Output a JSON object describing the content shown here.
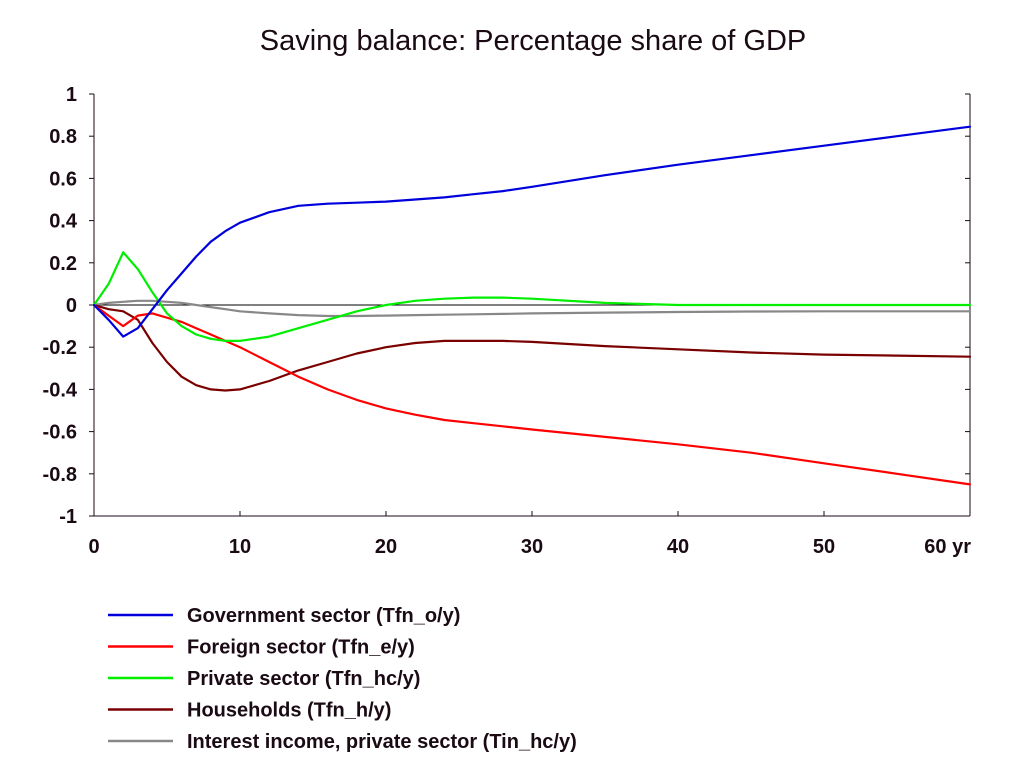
{
  "chart_data": {
    "type": "line",
    "title": "Saving balance: Percentage share of GDP",
    "xlabel": "",
    "ylabel": "",
    "x_unit_label": "yr",
    "xlim": [
      0,
      60
    ],
    "ylim": [
      -1,
      1
    ],
    "x_ticks": [
      0,
      10,
      20,
      30,
      40,
      50,
      60
    ],
    "x_tick_labels": [
      "0",
      "10",
      "20",
      "30",
      "40",
      "50",
      "60 yr"
    ],
    "y_ticks": [
      1,
      0.8,
      0.6,
      0.4,
      0.2,
      0,
      -0.2,
      -0.4,
      -0.6,
      -0.8,
      -1
    ],
    "y_tick_labels": [
      "1",
      "0.8",
      "0.6",
      "0.4",
      "0.2",
      "0",
      "-0.2",
      "-0.4",
      "-0.6",
      "-0.8",
      "-1"
    ],
    "zero_line": true,
    "grid": false,
    "legend_position": "bottom",
    "series": [
      {
        "name": "Government sector (Tfn_o/y)",
        "color": "#0000dd",
        "x": [
          0,
          1,
          2,
          3,
          4,
          5,
          6,
          7,
          8,
          9,
          10,
          12,
          14,
          16,
          18,
          20,
          22,
          24,
          26,
          28,
          30,
          35,
          40,
          45,
          50,
          55,
          60
        ],
        "values": [
          0,
          -0.07,
          -0.15,
          -0.11,
          -0.02,
          0.07,
          0.15,
          0.23,
          0.3,
          0.35,
          0.39,
          0.44,
          0.47,
          0.48,
          0.485,
          0.49,
          0.5,
          0.51,
          0.525,
          0.54,
          0.56,
          0.615,
          0.665,
          0.71,
          0.755,
          0.8,
          0.845
        ]
      },
      {
        "name": "Foreign sector (Tfn_e/y)",
        "color": "#ff0000",
        "x": [
          0,
          1,
          2,
          3,
          4,
          5,
          6,
          7,
          8,
          9,
          10,
          12,
          14,
          16,
          18,
          20,
          22,
          24,
          26,
          28,
          30,
          35,
          40,
          45,
          50,
          55,
          60
        ],
        "values": [
          0,
          -0.05,
          -0.1,
          -0.05,
          -0.04,
          -0.06,
          -0.08,
          -0.11,
          -0.14,
          -0.17,
          -0.2,
          -0.27,
          -0.34,
          -0.4,
          -0.45,
          -0.49,
          -0.52,
          -0.545,
          -0.56,
          -0.575,
          -0.59,
          -0.625,
          -0.66,
          -0.7,
          -0.75,
          -0.8,
          -0.85
        ]
      },
      {
        "name": "Private sector (Tfn_hc/y)",
        "color": "#00ee00",
        "x": [
          0,
          1,
          2,
          3,
          4,
          5,
          6,
          7,
          8,
          9,
          10,
          12,
          14,
          16,
          18,
          20,
          22,
          24,
          26,
          28,
          30,
          35,
          40,
          45,
          50,
          55,
          60
        ],
        "values": [
          0,
          0.1,
          0.25,
          0.17,
          0.06,
          -0.04,
          -0.1,
          -0.14,
          -0.16,
          -0.17,
          -0.17,
          -0.15,
          -0.11,
          -0.07,
          -0.03,
          0.0,
          0.02,
          0.03,
          0.035,
          0.035,
          0.03,
          0.01,
          0.0,
          0.0,
          0.0,
          0.0,
          0.0
        ]
      },
      {
        "name": "Households (Tfn_h/y)",
        "color": "#7a0000",
        "x": [
          0,
          1,
          2,
          3,
          4,
          5,
          6,
          7,
          8,
          9,
          10,
          12,
          14,
          16,
          18,
          20,
          22,
          24,
          26,
          28,
          30,
          35,
          40,
          45,
          50,
          55,
          60
        ],
        "values": [
          0,
          -0.02,
          -0.03,
          -0.07,
          -0.18,
          -0.27,
          -0.34,
          -0.38,
          -0.4,
          -0.405,
          -0.4,
          -0.36,
          -0.31,
          -0.27,
          -0.23,
          -0.2,
          -0.18,
          -0.17,
          -0.17,
          -0.17,
          -0.175,
          -0.195,
          -0.21,
          -0.225,
          -0.235,
          -0.24,
          -0.245
        ]
      },
      {
        "name": "Interest income, private sector (Tin_hc/y)",
        "color": "#888888",
        "x": [
          0,
          1,
          2,
          3,
          4,
          5,
          6,
          7,
          8,
          9,
          10,
          12,
          14,
          16,
          18,
          20,
          22,
          24,
          26,
          28,
          30,
          35,
          40,
          45,
          50,
          55,
          60
        ],
        "values": [
          0,
          0.01,
          0.015,
          0.02,
          0.02,
          0.015,
          0.01,
          0.0,
          -0.01,
          -0.02,
          -0.03,
          -0.04,
          -0.048,
          -0.052,
          -0.052,
          -0.05,
          -0.048,
          -0.046,
          -0.044,
          -0.042,
          -0.04,
          -0.036,
          -0.033,
          -0.031,
          -0.03,
          -0.03,
          -0.03
        ]
      }
    ]
  }
}
